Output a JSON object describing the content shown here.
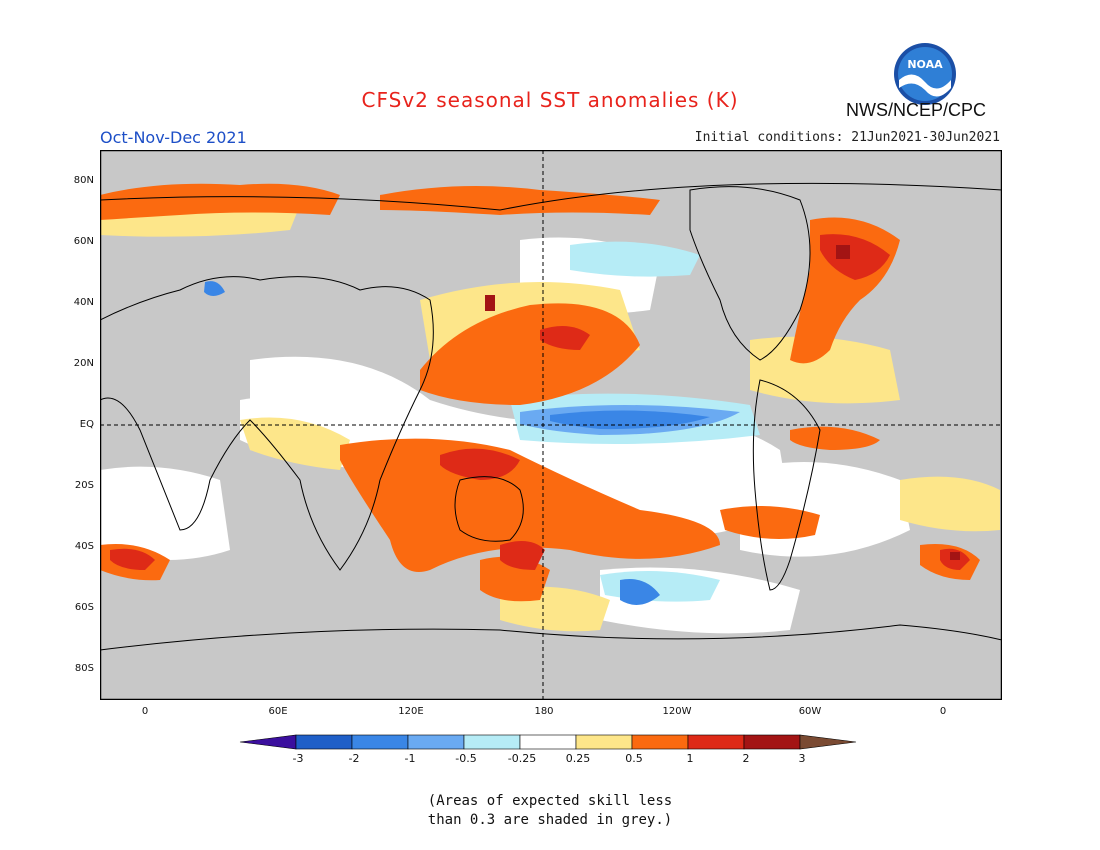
{
  "title": "CFSv2 seasonal SST anomalies (K)",
  "agency": "NWS/NCEP/CPC",
  "logo_text": "NOAA",
  "season": "Oct-Nov-Dec 2021",
  "initial_conditions": "Initial conditions: 21Jun2021-30Jun2021",
  "lat_labels": [
    "80N",
    "60N",
    "40N",
    "20N",
    "EQ",
    "20S",
    "40S",
    "60S",
    "80S"
  ],
  "lon_labels": [
    "0",
    "60E",
    "120E",
    "180",
    "120W",
    "60W",
    "0"
  ],
  "colorbar": {
    "ticks": [
      "-3",
      "-2",
      "-1",
      "-0.5",
      "-0.25",
      "0.25",
      "0.5",
      "1",
      "2",
      "3"
    ],
    "colors": [
      "#3b0f9e",
      "#1f5fc8",
      "#3a86e6",
      "#6aaaf2",
      "#b6ecf6",
      "#ffffff",
      "#fde68a",
      "#fb6a10",
      "#de2a17",
      "#a31414",
      "#7a4a32"
    ]
  },
  "note_lines": [
    "(Areas of expected skill less",
    "than 0.3 are shaded in grey.)"
  ],
  "colors": {
    "land": "#c8c8c8",
    "ocean_neutral": "#ffffff",
    "title": "#e8231c",
    "season": "#1d4fc7"
  }
}
